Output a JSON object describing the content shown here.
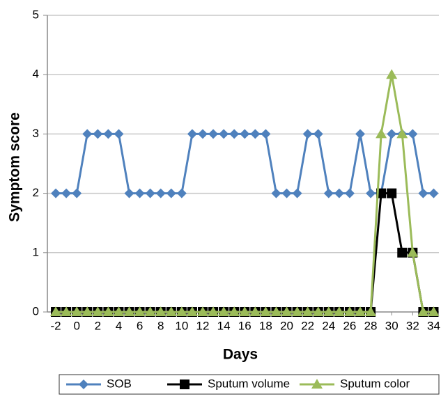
{
  "chart_data": {
    "type": "line",
    "x": [
      -2,
      -1,
      0,
      1,
      2,
      3,
      4,
      5,
      6,
      7,
      8,
      9,
      10,
      11,
      12,
      13,
      14,
      15,
      16,
      17,
      18,
      19,
      20,
      21,
      22,
      23,
      24,
      25,
      26,
      27,
      28,
      29,
      30,
      31,
      32,
      33,
      34
    ],
    "series": [
      {
        "name": "SOB",
        "color": "#4f81bd",
        "marker": "diamond",
        "values": [
          2,
          2,
          2,
          3,
          3,
          3,
          3,
          2,
          2,
          2,
          2,
          2,
          2,
          3,
          3,
          3,
          3,
          3,
          3,
          3,
          3,
          2,
          2,
          2,
          3,
          3,
          2,
          2,
          2,
          3,
          2,
          2,
          3,
          3,
          3,
          2,
          2
        ]
      },
      {
        "name": "Sputum volume",
        "color": "#000000",
        "marker": "square",
        "values": [
          0,
          0,
          0,
          0,
          0,
          0,
          0,
          0,
          0,
          0,
          0,
          0,
          0,
          0,
          0,
          0,
          0,
          0,
          0,
          0,
          0,
          0,
          0,
          0,
          0,
          0,
          0,
          0,
          0,
          0,
          0,
          2,
          2,
          1,
          1,
          0,
          0
        ]
      },
      {
        "name": "Sputum color",
        "color": "#9bbb59",
        "marker": "triangle",
        "values": [
          0,
          0,
          0,
          0,
          0,
          0,
          0,
          0,
          0,
          0,
          0,
          0,
          0,
          0,
          0,
          0,
          0,
          0,
          0,
          0,
          0,
          0,
          0,
          0,
          0,
          0,
          0,
          0,
          0,
          0,
          0,
          3,
          4,
          3,
          1,
          0,
          0
        ]
      }
    ],
    "x_label": "Days",
    "y_label": "Symptom score",
    "xlim": [
      -2.8,
      34.5
    ],
    "xticks": [
      -2,
      0,
      2,
      4,
      6,
      8,
      10,
      12,
      14,
      16,
      18,
      20,
      22,
      24,
      26,
      28,
      30,
      32,
      34
    ],
    "ylim": [
      0,
      5
    ],
    "yticks": [
      0,
      1,
      2,
      3,
      4,
      5
    ],
    "grid": true,
    "legend": "bottom"
  }
}
